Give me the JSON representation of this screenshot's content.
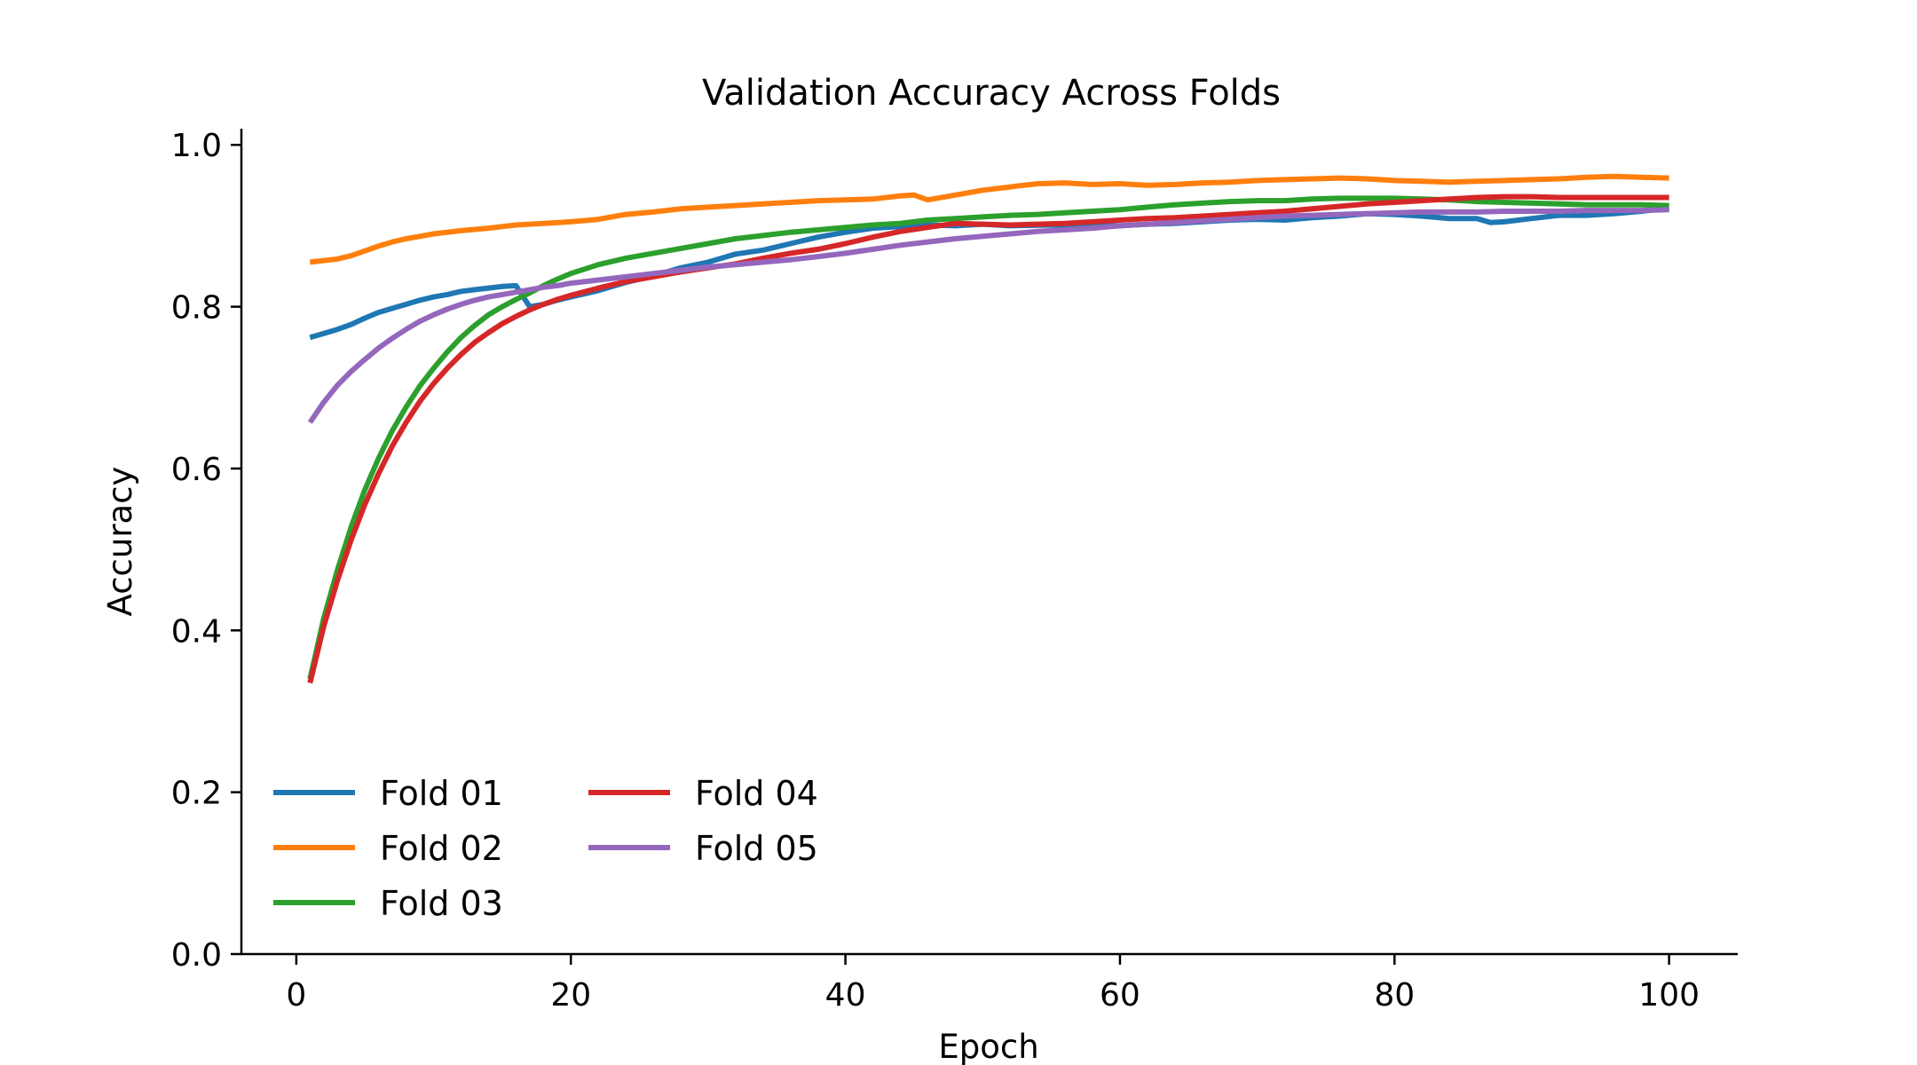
{
  "chart_data": {
    "type": "line",
    "title": "Validation Accuracy Across Folds",
    "xlabel": "Epoch",
    "ylabel": "Accuracy",
    "xlim": [
      -4,
      105
    ],
    "ylim": [
      0.0,
      1.02
    ],
    "xticks": [
      0,
      20,
      40,
      60,
      80,
      100
    ],
    "xtick_labels": [
      "0",
      "20",
      "40",
      "60",
      "80",
      "100"
    ],
    "yticks": [
      0.0,
      0.2,
      0.4,
      0.6,
      0.8,
      1.0
    ],
    "ytick_labels": [
      "0.0",
      "0.2",
      "0.4",
      "0.6",
      "0.8",
      "1.0"
    ],
    "grid": false,
    "legend_position": "lower-left",
    "legend_columns": 2,
    "series": [
      {
        "name": "Fold 01",
        "color": "#1f77b4",
        "points": [
          [
            1,
            0.762
          ],
          [
            2,
            0.767
          ],
          [
            3,
            0.772
          ],
          [
            4,
            0.778
          ],
          [
            5,
            0.786
          ],
          [
            6,
            0.793
          ],
          [
            7,
            0.798
          ],
          [
            8,
            0.803
          ],
          [
            9,
            0.808
          ],
          [
            10,
            0.812
          ],
          [
            11,
            0.815
          ],
          [
            12,
            0.819
          ],
          [
            13,
            0.821
          ],
          [
            14,
            0.823
          ],
          [
            15,
            0.825
          ],
          [
            16,
            0.826
          ],
          [
            17,
            0.8
          ],
          [
            18,
            0.803
          ],
          [
            19,
            0.808
          ],
          [
            20,
            0.812
          ],
          [
            22,
            0.82
          ],
          [
            24,
            0.83
          ],
          [
            26,
            0.838
          ],
          [
            28,
            0.848
          ],
          [
            30,
            0.855
          ],
          [
            32,
            0.865
          ],
          [
            34,
            0.87
          ],
          [
            36,
            0.878
          ],
          [
            38,
            0.886
          ],
          [
            40,
            0.892
          ],
          [
            42,
            0.897
          ],
          [
            44,
            0.899
          ],
          [
            46,
            0.901
          ],
          [
            48,
            0.9
          ],
          [
            50,
            0.902
          ],
          [
            52,
            0.9
          ],
          [
            55,
            0.901
          ],
          [
            58,
            0.9
          ],
          [
            60,
            0.9
          ],
          [
            62,
            0.902
          ],
          [
            64,
            0.903
          ],
          [
            66,
            0.905
          ],
          [
            68,
            0.907
          ],
          [
            70,
            0.908
          ],
          [
            72,
            0.907
          ],
          [
            74,
            0.91
          ],
          [
            76,
            0.912
          ],
          [
            78,
            0.915
          ],
          [
            80,
            0.914
          ],
          [
            82,
            0.912
          ],
          [
            84,
            0.909
          ],
          [
            86,
            0.909
          ],
          [
            87,
            0.904
          ],
          [
            88,
            0.905
          ],
          [
            90,
            0.909
          ],
          [
            92,
            0.913
          ],
          [
            94,
            0.913
          ],
          [
            96,
            0.915
          ],
          [
            98,
            0.918
          ],
          [
            100,
            0.922
          ]
        ]
      },
      {
        "name": "Fold 02",
        "color": "#ff7f0e",
        "points": [
          [
            1,
            0.855
          ],
          [
            2,
            0.857
          ],
          [
            3,
            0.859
          ],
          [
            4,
            0.863
          ],
          [
            5,
            0.869
          ],
          [
            6,
            0.875
          ],
          [
            7,
            0.88
          ],
          [
            8,
            0.884
          ],
          [
            9,
            0.887
          ],
          [
            10,
            0.89
          ],
          [
            12,
            0.894
          ],
          [
            14,
            0.897
          ],
          [
            16,
            0.901
          ],
          [
            18,
            0.903
          ],
          [
            20,
            0.905
          ],
          [
            22,
            0.908
          ],
          [
            24,
            0.914
          ],
          [
            26,
            0.917
          ],
          [
            28,
            0.921
          ],
          [
            30,
            0.923
          ],
          [
            32,
            0.925
          ],
          [
            34,
            0.927
          ],
          [
            36,
            0.929
          ],
          [
            38,
            0.931
          ],
          [
            40,
            0.932
          ],
          [
            42,
            0.933
          ],
          [
            44,
            0.937
          ],
          [
            45,
            0.938
          ],
          [
            46,
            0.932
          ],
          [
            48,
            0.938
          ],
          [
            50,
            0.944
          ],
          [
            52,
            0.948
          ],
          [
            54,
            0.952
          ],
          [
            56,
            0.953
          ],
          [
            58,
            0.951
          ],
          [
            60,
            0.952
          ],
          [
            62,
            0.95
          ],
          [
            64,
            0.951
          ],
          [
            66,
            0.953
          ],
          [
            68,
            0.954
          ],
          [
            70,
            0.956
          ],
          [
            72,
            0.957
          ],
          [
            74,
            0.958
          ],
          [
            76,
            0.959
          ],
          [
            78,
            0.958
          ],
          [
            80,
            0.956
          ],
          [
            82,
            0.955
          ],
          [
            84,
            0.954
          ],
          [
            86,
            0.955
          ],
          [
            88,
            0.956
          ],
          [
            90,
            0.957
          ],
          [
            92,
            0.958
          ],
          [
            94,
            0.96
          ],
          [
            96,
            0.961
          ],
          [
            98,
            0.96
          ],
          [
            100,
            0.959
          ]
        ]
      },
      {
        "name": "Fold 03",
        "color": "#2ca02c",
        "points": [
          [
            1,
            0.34
          ],
          [
            2,
            0.415
          ],
          [
            3,
            0.475
          ],
          [
            4,
            0.528
          ],
          [
            5,
            0.574
          ],
          [
            6,
            0.613
          ],
          [
            7,
            0.647
          ],
          [
            8,
            0.676
          ],
          [
            9,
            0.702
          ],
          [
            10,
            0.724
          ],
          [
            11,
            0.744
          ],
          [
            12,
            0.762
          ],
          [
            13,
            0.777
          ],
          [
            14,
            0.79
          ],
          [
            15,
            0.8
          ],
          [
            16,
            0.809
          ],
          [
            17,
            0.817
          ],
          [
            18,
            0.826
          ],
          [
            19,
            0.834
          ],
          [
            20,
            0.841
          ],
          [
            22,
            0.852
          ],
          [
            24,
            0.86
          ],
          [
            26,
            0.866
          ],
          [
            28,
            0.872
          ],
          [
            30,
            0.878
          ],
          [
            32,
            0.884
          ],
          [
            34,
            0.888
          ],
          [
            36,
            0.892
          ],
          [
            38,
            0.895
          ],
          [
            40,
            0.898
          ],
          [
            42,
            0.901
          ],
          [
            44,
            0.903
          ],
          [
            46,
            0.907
          ],
          [
            48,
            0.909
          ],
          [
            50,
            0.911
          ],
          [
            52,
            0.913
          ],
          [
            54,
            0.914
          ],
          [
            56,
            0.916
          ],
          [
            58,
            0.918
          ],
          [
            60,
            0.92
          ],
          [
            62,
            0.923
          ],
          [
            64,
            0.926
          ],
          [
            66,
            0.928
          ],
          [
            68,
            0.93
          ],
          [
            70,
            0.931
          ],
          [
            72,
            0.931
          ],
          [
            74,
            0.933
          ],
          [
            76,
            0.934
          ],
          [
            78,
            0.934
          ],
          [
            80,
            0.934
          ],
          [
            82,
            0.933
          ],
          [
            84,
            0.932
          ],
          [
            86,
            0.93
          ],
          [
            88,
            0.929
          ],
          [
            90,
            0.928
          ],
          [
            92,
            0.927
          ],
          [
            94,
            0.926
          ],
          [
            96,
            0.926
          ],
          [
            98,
            0.926
          ],
          [
            100,
            0.925
          ]
        ]
      },
      {
        "name": "Fold 04",
        "color": "#d62728",
        "points": [
          [
            1,
            0.335
          ],
          [
            2,
            0.405
          ],
          [
            3,
            0.462
          ],
          [
            4,
            0.512
          ],
          [
            5,
            0.556
          ],
          [
            6,
            0.594
          ],
          [
            7,
            0.628
          ],
          [
            8,
            0.657
          ],
          [
            9,
            0.683
          ],
          [
            10,
            0.705
          ],
          [
            11,
            0.724
          ],
          [
            12,
            0.741
          ],
          [
            13,
            0.756
          ],
          [
            14,
            0.768
          ],
          [
            15,
            0.779
          ],
          [
            16,
            0.788
          ],
          [
            17,
            0.796
          ],
          [
            18,
            0.803
          ],
          [
            19,
            0.809
          ],
          [
            20,
            0.814
          ],
          [
            22,
            0.823
          ],
          [
            24,
            0.831
          ],
          [
            26,
            0.837
          ],
          [
            28,
            0.843
          ],
          [
            30,
            0.848
          ],
          [
            32,
            0.853
          ],
          [
            34,
            0.86
          ],
          [
            36,
            0.866
          ],
          [
            38,
            0.871
          ],
          [
            40,
            0.878
          ],
          [
            42,
            0.886
          ],
          [
            44,
            0.893
          ],
          [
            46,
            0.898
          ],
          [
            48,
            0.903
          ],
          [
            50,
            0.902
          ],
          [
            52,
            0.901
          ],
          [
            54,
            0.902
          ],
          [
            56,
            0.903
          ],
          [
            58,
            0.905
          ],
          [
            60,
            0.907
          ],
          [
            62,
            0.909
          ],
          [
            64,
            0.91
          ],
          [
            66,
            0.912
          ],
          [
            68,
            0.914
          ],
          [
            70,
            0.916
          ],
          [
            72,
            0.918
          ],
          [
            74,
            0.921
          ],
          [
            76,
            0.924
          ],
          [
            78,
            0.927
          ],
          [
            80,
            0.929
          ],
          [
            82,
            0.931
          ],
          [
            84,
            0.933
          ],
          [
            86,
            0.935
          ],
          [
            88,
            0.936
          ],
          [
            90,
            0.936
          ],
          [
            92,
            0.935
          ],
          [
            94,
            0.935
          ],
          [
            96,
            0.935
          ],
          [
            98,
            0.935
          ],
          [
            100,
            0.935
          ]
        ]
      },
      {
        "name": "Fold 05",
        "color": "#9467bd",
        "points": [
          [
            1,
            0.657
          ],
          [
            2,
            0.682
          ],
          [
            3,
            0.703
          ],
          [
            4,
            0.72
          ],
          [
            5,
            0.735
          ],
          [
            6,
            0.749
          ],
          [
            7,
            0.761
          ],
          [
            8,
            0.772
          ],
          [
            9,
            0.782
          ],
          [
            10,
            0.79
          ],
          [
            11,
            0.797
          ],
          [
            12,
            0.803
          ],
          [
            13,
            0.808
          ],
          [
            14,
            0.812
          ],
          [
            15,
            0.815
          ],
          [
            16,
            0.818
          ],
          [
            17,
            0.821
          ],
          [
            18,
            0.824
          ],
          [
            19,
            0.826
          ],
          [
            20,
            0.829
          ],
          [
            22,
            0.833
          ],
          [
            24,
            0.837
          ],
          [
            26,
            0.841
          ],
          [
            28,
            0.845
          ],
          [
            30,
            0.849
          ],
          [
            32,
            0.852
          ],
          [
            34,
            0.855
          ],
          [
            36,
            0.858
          ],
          [
            38,
            0.862
          ],
          [
            40,
            0.866
          ],
          [
            42,
            0.871
          ],
          [
            44,
            0.876
          ],
          [
            46,
            0.88
          ],
          [
            48,
            0.884
          ],
          [
            50,
            0.887
          ],
          [
            52,
            0.89
          ],
          [
            54,
            0.893
          ],
          [
            56,
            0.895
          ],
          [
            58,
            0.897
          ],
          [
            60,
            0.9
          ],
          [
            62,
            0.902
          ],
          [
            64,
            0.904
          ],
          [
            66,
            0.906
          ],
          [
            68,
            0.908
          ],
          [
            70,
            0.91
          ],
          [
            72,
            0.912
          ],
          [
            74,
            0.913
          ],
          [
            76,
            0.914
          ],
          [
            78,
            0.915
          ],
          [
            80,
            0.916
          ],
          [
            82,
            0.917
          ],
          [
            84,
            0.917
          ],
          [
            86,
            0.917
          ],
          [
            88,
            0.918
          ],
          [
            90,
            0.918
          ],
          [
            92,
            0.918
          ],
          [
            94,
            0.919
          ],
          [
            96,
            0.919
          ],
          [
            98,
            0.919
          ],
          [
            100,
            0.92
          ]
        ]
      }
    ]
  }
}
